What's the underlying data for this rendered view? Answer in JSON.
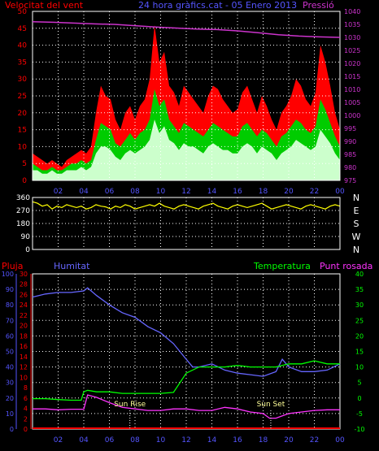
{
  "colors": {
    "background": "#000000",
    "grid": "#ffffff",
    "gust": "#ff0000",
    "wind": "#00cc00",
    "wind_avg": "#ccffcc",
    "pressure": "#cc33cc",
    "direction": "#ffff00",
    "rain": "#ff0000",
    "humidity": "#6666ff",
    "temperature": "#00ff00",
    "dewpoint": "#ff33ff",
    "axis_blue": "#5555ff",
    "white": "#ffffff"
  },
  "chart_data": [
    {
      "id": "wind",
      "type": "area",
      "title": "24 hora gràfics.cat - 05 Enero 2013",
      "left_label": "Velocitat del vent",
      "right_label": "Pressió",
      "x_ticks": [
        "02",
        "04",
        "06",
        "08",
        "10",
        "12",
        "14",
        "16",
        "18",
        "20",
        "22",
        "00"
      ],
      "y_ticks": [
        "0",
        "5",
        "10",
        "15",
        "20",
        "25",
        "30",
        "35",
        "40",
        "45",
        "50"
      ],
      "y2_ticks": [
        "975",
        "980",
        "985",
        "990",
        "995",
        "1000",
        "1005",
        "1010",
        "1015",
        "1020",
        "1025",
        "1030",
        "1035",
        "1040"
      ],
      "ylim": [
        0,
        50
      ],
      "y2lim": [
        975,
        1040
      ],
      "grid": true,
      "series": [
        {
          "key": "gust",
          "values": [
            8,
            7,
            6,
            5,
            6,
            5,
            4,
            6,
            7,
            8,
            9,
            8,
            10,
            20,
            28,
            25,
            24,
            18,
            15,
            20,
            22,
            18,
            22,
            24,
            30,
            46,
            35,
            38,
            28,
            26,
            22,
            28,
            26,
            24,
            22,
            20,
            25,
            28,
            27,
            24,
            22,
            20,
            21,
            26,
            28,
            24,
            20,
            25,
            22,
            18,
            15,
            20,
            22,
            25,
            30,
            28,
            24,
            22,
            26,
            40,
            35,
            28,
            20,
            15
          ]
        },
        {
          "key": "wind",
          "values": [
            5,
            4,
            3,
            3,
            4,
            3,
            3,
            4,
            5,
            5,
            6,
            5,
            6,
            12,
            17,
            16,
            15,
            11,
            10,
            12,
            14,
            12,
            14,
            15,
            18,
            27,
            22,
            24,
            18,
            16,
            14,
            17,
            16,
            15,
            14,
            13,
            15,
            17,
            16,
            15,
            14,
            13,
            13,
            16,
            17,
            15,
            13,
            15,
            14,
            12,
            10,
            13,
            14,
            16,
            18,
            17,
            15,
            14,
            16,
            24,
            21,
            17,
            13,
            10
          ]
        },
        {
          "key": "wind_avg",
          "values": [
            3,
            3,
            2,
            2,
            3,
            2,
            2,
            3,
            3,
            3,
            4,
            3,
            4,
            8,
            10,
            10,
            9,
            7,
            6,
            8,
            9,
            8,
            9,
            10,
            12,
            18,
            14,
            16,
            12,
            11,
            9,
            11,
            10,
            10,
            9,
            8,
            10,
            11,
            10,
            9,
            9,
            8,
            8,
            10,
            11,
            10,
            8,
            10,
            9,
            8,
            6,
            8,
            9,
            10,
            12,
            11,
            10,
            9,
            10,
            15,
            13,
            11,
            8,
            6
          ]
        },
        {
          "key": "pressure",
          "values": [
            1036,
            1035.8,
            1035.5,
            1035.2,
            1035,
            1034.5,
            1034,
            1033.6,
            1033.2,
            1033,
            1032.5,
            1031.8,
            1031,
            1030.5,
            1030.2,
            1030
          ]
        }
      ]
    },
    {
      "id": "direction",
      "type": "line",
      "y_ticks": [
        "0",
        "90",
        "180",
        "270",
        "360"
      ],
      "y2_ticks": [
        "N",
        "W",
        "S",
        "E",
        "N"
      ],
      "x_ticks": [
        "02",
        "04",
        "06",
        "08",
        "10",
        "12",
        "14",
        "16",
        "18",
        "20",
        "22",
        "00"
      ],
      "ylim": [
        0,
        360
      ],
      "grid": true,
      "series": [
        {
          "key": "direction",
          "values": [
            330,
            320,
            300,
            310,
            280,
            300,
            290,
            310,
            300,
            290,
            300,
            280,
            290,
            310,
            300,
            295,
            280,
            300,
            290,
            310,
            300,
            280,
            290,
            300,
            310,
            300,
            320,
            300,
            290,
            280,
            300,
            310,
            300,
            290,
            280,
            300,
            310,
            320,
            300,
            290,
            280,
            300,
            310,
            300,
            290,
            300,
            310,
            320,
            300,
            280,
            290,
            300,
            310,
            300,
            290,
            280,
            300,
            310,
            300,
            290,
            280,
            300,
            310,
            300
          ]
        }
      ]
    },
    {
      "id": "climate",
      "type": "line",
      "labels": {
        "rain": "Pluja",
        "humidity": "Humitat",
        "temperature": "Temperatura",
        "dewpoint": "Punt rosada"
      },
      "annotations": [
        {
          "text": "Sun Rise",
          "hour": 7.6
        },
        {
          "text": "Sun Set",
          "hour": 18.6
        }
      ],
      "x_ticks": [
        "02",
        "04",
        "06",
        "08",
        "10",
        "12",
        "14",
        "16",
        "18",
        "20",
        "22",
        "00"
      ],
      "humidity_ticks": [
        "0",
        "10",
        "20",
        "30",
        "40",
        "50",
        "60",
        "70",
        "80",
        "90",
        "100"
      ],
      "rain_ticks": [
        "0",
        "2",
        "4",
        "6",
        "8",
        "10",
        "12",
        "14",
        "16",
        "18",
        "20",
        "22",
        "24",
        "26",
        "28",
        "30"
      ],
      "temp_ticks": [
        "-10",
        "-5",
        "0",
        "5",
        "10",
        "15",
        "20",
        "25",
        "30",
        "35",
        "40"
      ],
      "ylim_humidity": [
        0,
        100
      ],
      "ylim_temp": [
        -10,
        40
      ],
      "grid": true,
      "series": [
        {
          "key": "humidity",
          "x": [
            0,
            1,
            2,
            3,
            4,
            4.3,
            5,
            6,
            7,
            8,
            9,
            10,
            11,
            12,
            12.5,
            13,
            14,
            15,
            16,
            17,
            18,
            19,
            19.5,
            20,
            21,
            22,
            23,
            24
          ],
          "values": [
            85,
            87,
            88,
            88,
            89,
            91,
            86,
            80,
            75,
            72,
            66,
            62,
            55,
            45,
            40,
            40,
            42,
            38,
            36,
            35,
            34,
            37,
            45,
            40,
            37,
            37,
            38,
            42
          ]
        },
        {
          "key": "temperature",
          "x": [
            0,
            1,
            2,
            3,
            3.8,
            4,
            4.3,
            5,
            6,
            7,
            8,
            9,
            10,
            11,
            12,
            13,
            14,
            15,
            16,
            17,
            18,
            19,
            20,
            21,
            22,
            23,
            24
          ],
          "values": [
            -0.2,
            -0.2,
            -0.5,
            -0.7,
            -0.7,
            2,
            2.5,
            2,
            2,
            1.5,
            1.5,
            1.5,
            1.5,
            1.8,
            8,
            10,
            10,
            10,
            10.5,
            10,
            10,
            10,
            11,
            11,
            12,
            11,
            11
          ]
        },
        {
          "key": "dewpoint",
          "x": [
            0,
            1,
            2,
            3,
            4,
            4.3,
            5,
            6,
            7,
            8,
            9,
            10,
            11,
            12,
            13,
            14,
            15,
            16,
            17,
            18,
            18.5,
            19,
            20,
            21,
            22,
            23,
            24
          ],
          "values": [
            -3.5,
            -3.5,
            -3.8,
            -3.6,
            -3.6,
            1,
            0.2,
            -1.5,
            -3,
            -3.5,
            -4,
            -4,
            -3.5,
            -3.5,
            -4,
            -4,
            -3,
            -3.5,
            -4.5,
            -5,
            -6.5,
            -6.5,
            -5,
            -4.5,
            -4,
            -3.8,
            -3.8
          ]
        },
        {
          "key": "rain",
          "x": [
            0,
            24
          ],
          "values": [
            0,
            0
          ]
        }
      ]
    }
  ]
}
